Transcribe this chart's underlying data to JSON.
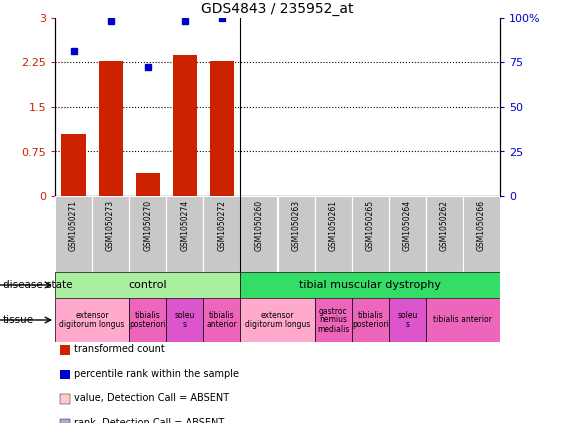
{
  "title": "GDS4843 / 235952_at",
  "samples": [
    "GSM1050271",
    "GSM1050273",
    "GSM1050270",
    "GSM1050274",
    "GSM1050272",
    "GSM1050260",
    "GSM1050263",
    "GSM1050261",
    "GSM1050265",
    "GSM1050264",
    "GSM1050262",
    "GSM1050266"
  ],
  "red_bars": [
    1.05,
    2.28,
    0.38,
    2.38,
    2.28,
    0,
    0,
    0,
    0,
    0,
    0,
    0
  ],
  "blue_dots": [
    2.45,
    2.95,
    2.18,
    2.95,
    3.0,
    null,
    null,
    null,
    null,
    null,
    null,
    null
  ],
  "ylim_left": [
    0,
    3
  ],
  "ylim_right": [
    0,
    100
  ],
  "yticks_left": [
    0,
    0.75,
    1.5,
    2.25,
    3
  ],
  "yticks_right": [
    0,
    25,
    50,
    75,
    100
  ],
  "ytick_labels_left": [
    "0",
    "0.75",
    "1.5",
    "2.25",
    "3"
  ],
  "ytick_labels_right": [
    "0",
    "25",
    "50",
    "75",
    "100%"
  ],
  "disease_state_groups": [
    {
      "label": "control",
      "start": 0,
      "end": 4,
      "color": "#aaeea0"
    },
    {
      "label": "tibial muscular dystrophy",
      "start": 5,
      "end": 11,
      "color": "#33dd66"
    }
  ],
  "tissue_groups": [
    {
      "label": "extensor\ndigitorum longus",
      "start": 0,
      "end": 1,
      "color": "#ffaacc"
    },
    {
      "label": "tibialis\nposteriori",
      "start": 2,
      "end": 2,
      "color": "#ee66bb"
    },
    {
      "label": "soleu\ns",
      "start": 3,
      "end": 3,
      "color": "#dd55cc"
    },
    {
      "label": "tibialis\nanterior",
      "start": 4,
      "end": 4,
      "color": "#ee66bb"
    },
    {
      "label": "extensor\ndigitorum longus",
      "start": 5,
      "end": 6,
      "color": "#ffaacc"
    },
    {
      "label": "gastroc\nnemius\nmedialis",
      "start": 7,
      "end": 7,
      "color": "#ee66bb"
    },
    {
      "label": "tibialis\nposteriori",
      "start": 8,
      "end": 8,
      "color": "#ee66bb"
    },
    {
      "label": "soleu\ns",
      "start": 9,
      "end": 9,
      "color": "#dd55cc"
    },
    {
      "label": "tibialis anterior",
      "start": 10,
      "end": 11,
      "color": "#ee66bb"
    }
  ],
  "bar_color": "#CC2200",
  "dot_color": "#0000CC",
  "bg_color": "#FFFFFF",
  "sample_bg_color": "#C8C8C8",
  "legend_items": [
    {
      "color": "#CC2200",
      "label": "transformed count"
    },
    {
      "color": "#0000CC",
      "label": "percentile rank within the sample"
    },
    {
      "color": "#ffcccc",
      "label": "value, Detection Call = ABSENT"
    },
    {
      "color": "#aaaadd",
      "label": "rank, Detection Call = ABSENT"
    }
  ]
}
